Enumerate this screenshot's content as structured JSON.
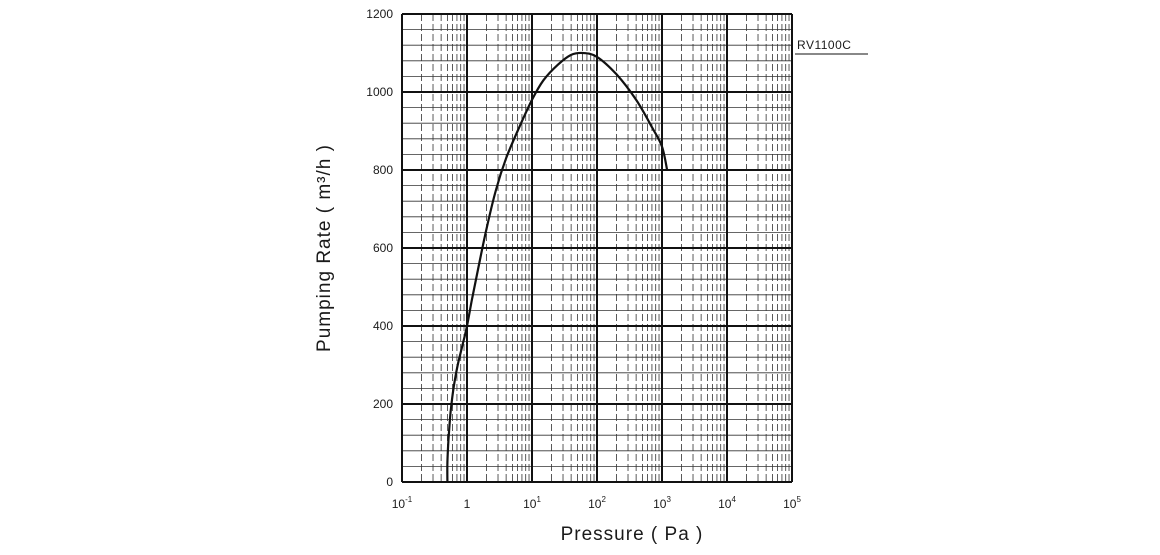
{
  "chart_data": {
    "type": "line",
    "title": "",
    "xlabel": "Pressure ( Pa )",
    "ylabel": "Pumping Rate  ( m³/h )",
    "x_scale": "log",
    "xlim": [
      0.1,
      100000
    ],
    "ylim": [
      0,
      1200
    ],
    "x_ticks": [
      {
        "value": 0.1,
        "base": "10",
        "exp": "-1"
      },
      {
        "value": 1,
        "base": "1",
        "exp": ""
      },
      {
        "value": 10,
        "base": "10",
        "exp": "1"
      },
      {
        "value": 100,
        "base": "10",
        "exp": "2"
      },
      {
        "value": 1000,
        "base": "10",
        "exp": "3"
      },
      {
        "value": 10000,
        "base": "10",
        "exp": "4"
      },
      {
        "value": 100000,
        "base": "10",
        "exp": "5"
      }
    ],
    "y_ticks": [
      "0",
      "200",
      "400",
      "600",
      "800",
      "1000",
      "1200"
    ],
    "grid": true,
    "series": [
      {
        "name": "RV1100C",
        "x": [
          0.5,
          0.5,
          0.52,
          0.56,
          0.62,
          0.72,
          0.85,
          1.0,
          1.2,
          1.5,
          2.0,
          2.8,
          4.0,
          6.0,
          10,
          15,
          25,
          40,
          60,
          100,
          200,
          400,
          700,
          1000,
          1200
        ],
        "y": [
          0,
          50,
          110,
          180,
          240,
          300,
          350,
          400,
          470,
          550,
          650,
          750,
          830,
          900,
          980,
          1030,
          1070,
          1095,
          1100,
          1090,
          1045,
          980,
          910,
          860,
          800
        ]
      }
    ]
  }
}
